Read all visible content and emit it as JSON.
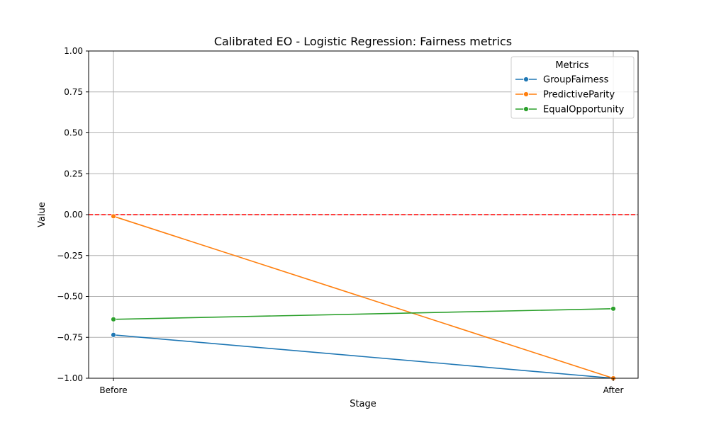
{
  "chart_data": {
    "type": "line",
    "title": "Calibrated EO - Logistic Regression: Fairness metrics",
    "xlabel": "Stage",
    "ylabel": "Value",
    "categories": [
      "Before",
      "After"
    ],
    "ylim": [
      -1.0,
      1.0
    ],
    "yticks": [
      1.0,
      0.75,
      0.5,
      0.25,
      0.0,
      -0.25,
      -0.5,
      -0.75,
      -1.0
    ],
    "ytick_labels": [
      "1.00",
      "0.75",
      "0.50",
      "0.25",
      "0.00",
      "−0.25",
      "−0.50",
      "−0.75",
      "−1.00"
    ],
    "grid": true,
    "reference_line": {
      "y": 0.0,
      "color": "#ff0000",
      "style": "dashed"
    },
    "legend": {
      "title": "Metrics",
      "placement": "top-right"
    },
    "series": [
      {
        "name": "GroupFairness",
        "color": "#1f77b4",
        "values": [
          -0.735,
          -1.0
        ]
      },
      {
        "name": "PredictiveParity",
        "color": "#ff7f0e",
        "values": [
          -0.01,
          -1.0
        ]
      },
      {
        "name": "EqualOpportunity",
        "color": "#2ca02c",
        "values": [
          -0.64,
          -0.575
        ]
      }
    ]
  }
}
